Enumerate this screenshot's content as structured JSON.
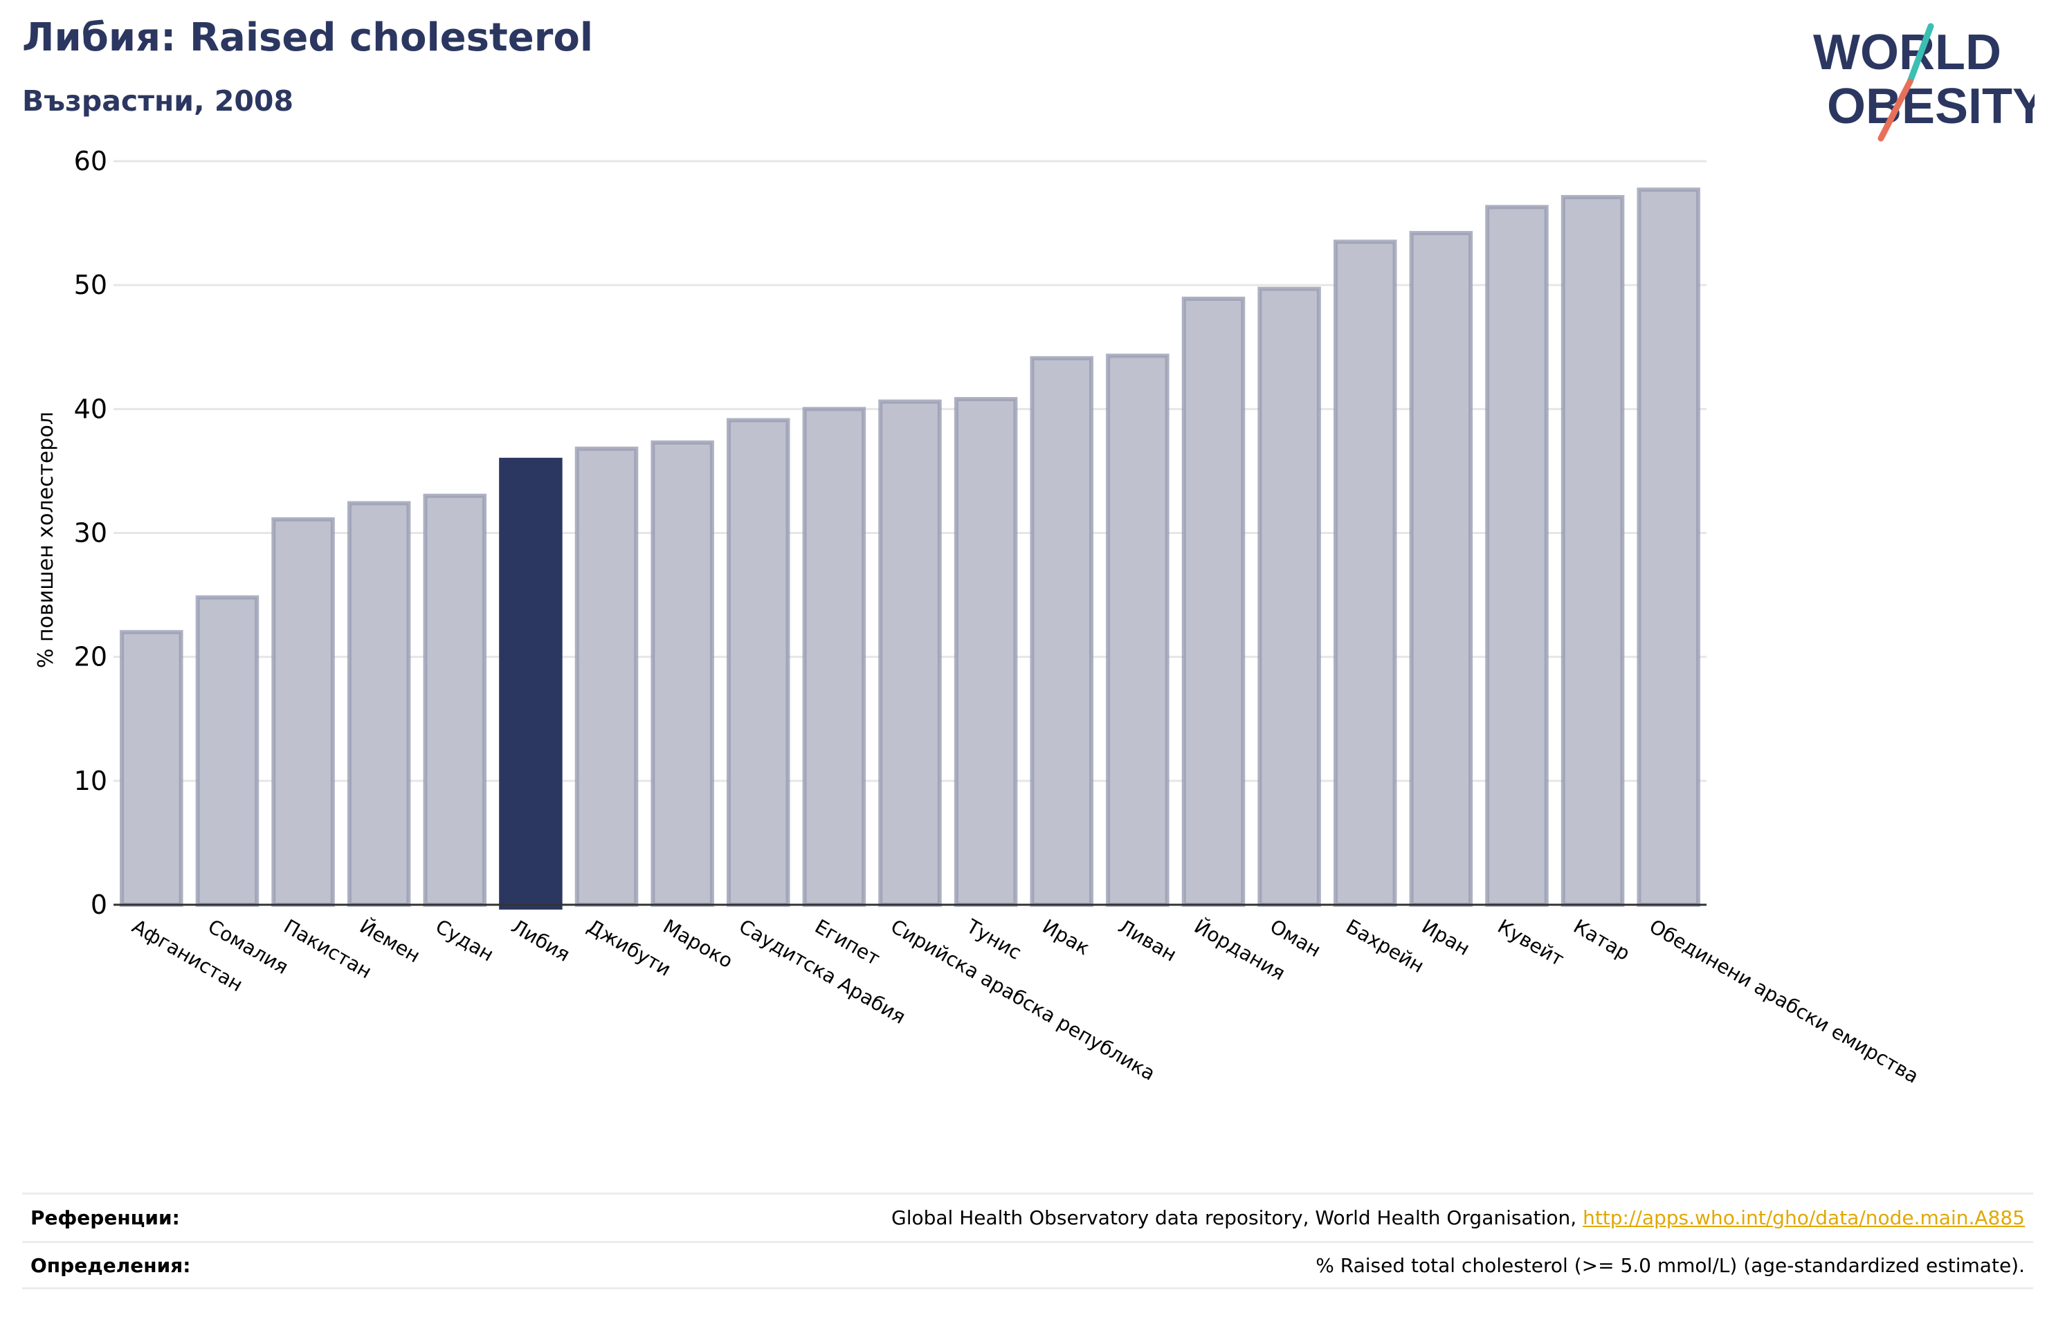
{
  "header": {
    "title": "Либия: Raised cholesterol",
    "subtitle": "Възрастни, 2008"
  },
  "logo": {
    "line1": "WORLD",
    "line2": "OBESITY",
    "accent_teal": "#3bbfb3",
    "accent_coral": "#e8705a",
    "text_color": "#2b3760"
  },
  "colors": {
    "bar": "#bfc1ce",
    "bar_border": "#9a9db3",
    "highlight": "#2b3760",
    "grid": "#e6e6e6",
    "axis": "#333333"
  },
  "chart_data": {
    "type": "bar",
    "title": "Либия: Raised cholesterol",
    "subtitle": "Възрастни, 2008",
    "xlabel": "",
    "ylabel": "% повишен холестерол",
    "ylim": [
      0,
      60
    ],
    "yticks": [
      0,
      10,
      20,
      30,
      40,
      50,
      60
    ],
    "grid": true,
    "highlight": "Либия",
    "categories": [
      "Афганистан",
      "Сомалия",
      "Пакистан",
      "Йемен",
      "Судан",
      "Либия",
      "Джибути",
      "Мароко",
      "Саудитска Арабия",
      "Египет",
      "Сирийска арабска република",
      "Тунис",
      "Ирак",
      "Ливан",
      "Йордания",
      "Оман",
      "Бахрейн",
      "Иран",
      "Кувейт",
      "Катар",
      "Обединени арабски емирства"
    ],
    "values": [
      22.0,
      24.8,
      31.1,
      32.4,
      33.0,
      35.9,
      36.8,
      37.3,
      39.1,
      40.0,
      40.6,
      40.8,
      44.1,
      44.3,
      48.9,
      49.7,
      53.5,
      54.2,
      56.3,
      57.1,
      57.7
    ]
  },
  "references": {
    "sources_label": "Референции:",
    "sources_text": "Global Health Observatory data repository, World Health Organisation, ",
    "sources_link": "http://apps.who.int/gho/data/node.main.A885",
    "definitions_label": "Определения:",
    "definitions_text": "% Raised total cholesterol (>= 5.0 mmol/L) (age-standardized estimate)."
  }
}
